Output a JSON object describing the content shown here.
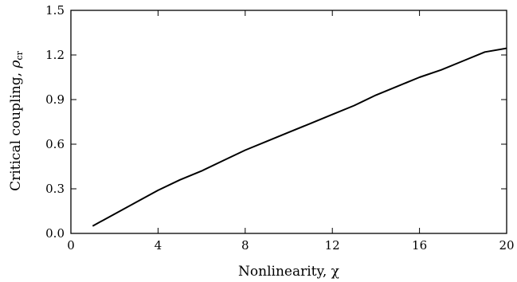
{
  "chart_data": {
    "type": "line",
    "xlabel": "Nonlinearity, χ",
    "ylabel": "Critical coupling, ",
    "ylabel_symbol": "ρ",
    "ylabel_subscript": "cr",
    "xlim": [
      0,
      20
    ],
    "ylim": [
      0,
      1.5
    ],
    "xticks": [
      "0",
      "4",
      "8",
      "12",
      "16",
      "20"
    ],
    "yticks": [
      "0.0",
      "0.3",
      "0.6",
      "0.9",
      "1.2",
      "1.5"
    ],
    "grid": false,
    "series": [
      {
        "x": [
          1,
          2,
          3,
          4,
          5,
          6,
          7,
          8,
          9,
          10,
          11,
          12,
          13,
          14,
          15,
          16,
          17,
          18,
          19,
          20
        ],
        "y": [
          0.05,
          0.13,
          0.21,
          0.29,
          0.36,
          0.42,
          0.49,
          0.56,
          0.62,
          0.68,
          0.74,
          0.8,
          0.86,
          0.93,
          0.99,
          1.05,
          1.1,
          1.16,
          1.22,
          1.245
        ]
      }
    ]
  }
}
